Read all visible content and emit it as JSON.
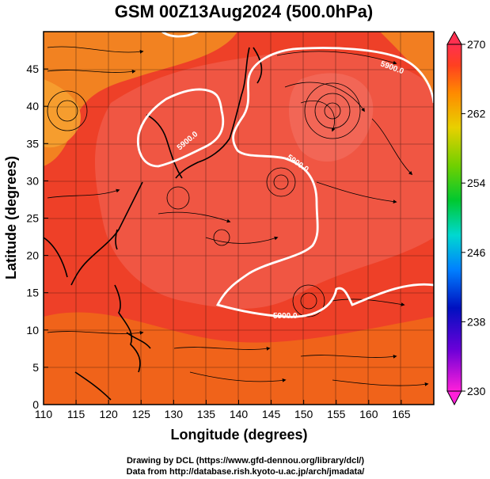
{
  "title": "GSM 00Z13Aug2024 (500.0hPa)",
  "xaxis": {
    "label": "Longitude (degrees)",
    "range": [
      110,
      170
    ],
    "ticks": [
      "110",
      "115",
      "120",
      "125",
      "130",
      "135",
      "140",
      "145",
      "150",
      "155",
      "160",
      "165"
    ]
  },
  "yaxis": {
    "label": "Latitude  (degrees)",
    "range": [
      0,
      50
    ],
    "ticks": [
      "0",
      "5",
      "10",
      "15",
      "20",
      "25",
      "30",
      "35",
      "40",
      "45"
    ]
  },
  "colorbar": {
    "range": [
      230,
      270
    ],
    "ticks": [
      "230",
      "238",
      "246",
      "254",
      "262",
      "270"
    ],
    "colors": [
      "#ff1fd9",
      "#c000e0",
      "#5a00d0",
      "#0010c0",
      "#0050ff",
      "#00a8ff",
      "#00d8d0",
      "#00d060",
      "#10c000",
      "#80d000",
      "#e0e000",
      "#ffb000",
      "#ff7000",
      "#ff3000",
      "#ff3050"
    ]
  },
  "contour_label": "5900.0",
  "credits": {
    "line1": "Drawing by DCL (https://www.gfd-dennou.org/library/dcl/)",
    "line2": "Data from http://database.rish.kyoto-u.ac.jp/arch/jmadata/"
  },
  "fill_colors": {
    "base": "#ee4028",
    "warm": "#f05a48",
    "orange": "#f28a20",
    "deep_orange": "#f06a18",
    "contour": "#ffffff",
    "streamline": "#000000"
  }
}
